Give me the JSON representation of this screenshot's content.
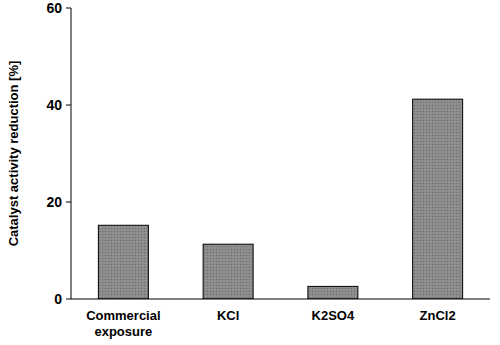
{
  "chart_data": {
    "type": "bar",
    "y_label": "Catalyst activity reduction [%]",
    "categories": [
      "Commercial exposure",
      "KCl",
      "K2SO4",
      "ZnCl2"
    ],
    "values": [
      15.2,
      11.3,
      2.6,
      41.2
    ],
    "color": "#8a8a8a",
    "ylim": [
      0,
      60
    ],
    "yticks": [
      0,
      20,
      40,
      60
    ],
    "grid": false
  }
}
